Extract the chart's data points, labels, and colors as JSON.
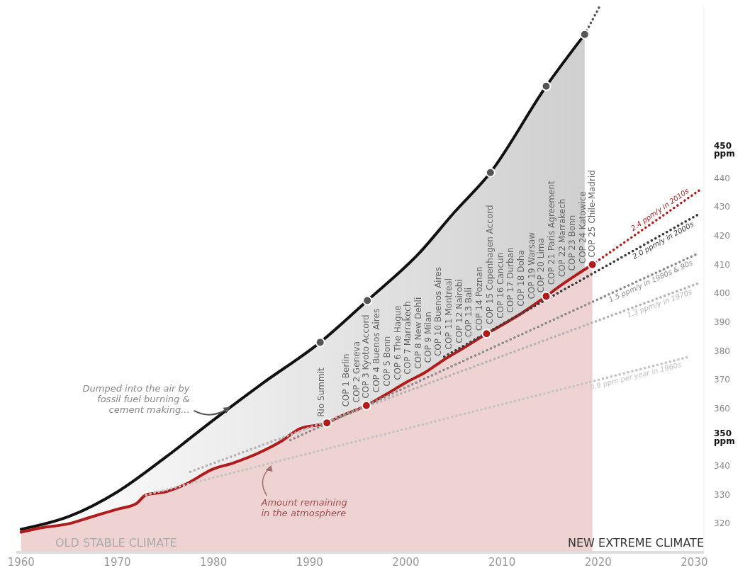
{
  "chart_data": {
    "type": "area",
    "marker": "none",
    "line_style": "solid",
    "xlim": [
      1959.5,
      2031
    ],
    "xticks": [
      1960,
      1970,
      1980,
      1990,
      2000,
      2010,
      2020,
      2030
    ],
    "ylim": [
      310,
      500
    ],
    "yticks": [
      320,
      330,
      340,
      {
        "value": 350,
        "label": "350 ppm"
      },
      360,
      370,
      380,
      390,
      400,
      410,
      420,
      430,
      440,
      {
        "value": 450,
        "label": "450 ppm"
      }
    ],
    "series": [
      {
        "color": "#111111",
        "x": [
          1960,
          1965,
          1970,
          1975,
          1980,
          1985,
          1991.1,
          1996,
          2001.4,
          2005,
          2008.8,
          2014.6,
          2018.6
        ],
        "values": [
          318,
          322.5,
          331,
          343,
          356,
          368.5,
          383,
          397.5,
          414,
          428,
          442,
          472,
          490
        ]
      },
      {
        "color": "#b01c1c",
        "x": [
          1960,
          1962,
          1965,
          1967,
          1970,
          1972,
          1973,
          1975,
          1977,
          1980,
          1982,
          1985,
          1987,
          1989,
          1991.8,
          1993,
          1995.9,
          1998,
          2000,
          2002,
          2004,
          2006,
          2008.4,
          2010,
          2012,
          2014.6,
          2016,
          2018,
          2019.4
        ],
        "values": [
          317,
          318.5,
          320,
          322,
          325,
          327,
          330,
          331,
          333.5,
          339,
          341,
          345,
          348.5,
          353,
          355,
          357,
          361,
          365,
          369,
          372.5,
          377,
          381,
          386,
          389,
          393,
          399,
          402.5,
          407,
          410
        ]
      },
      {
        "type": "line",
        "line_style": "dotted",
        "color": "#555555",
        "x": [
          2018.6,
          2020.2
        ],
        "values": [
          490,
          500
        ]
      },
      {
        "type": "line",
        "line_style": "dotted",
        "name": "0.9 ppm per year in 1960s",
        "color": "#c4c4c4",
        "x": [
          1973,
          2029.5
        ],
        "values": [
          330,
          378
        ]
      },
      {
        "type": "line",
        "line_style": "dotted",
        "name": "1.3 ppm/y in 1970s",
        "color": "#b4b4b4",
        "x": [
          1977.6,
          2030.5
        ],
        "values": [
          338,
          403.6
        ]
      },
      {
        "type": "line",
        "line_style": "dotted",
        "name": "1.5 ppm/y in 1980s & 90s",
        "color": "#8c8c8c",
        "x": [
          1988,
          2030.5
        ],
        "values": [
          349,
          414
        ]
      },
      {
        "type": "line",
        "line_style": "dotted",
        "name": "2.0 ppm/y in 2000s",
        "color": "#3a3a3a",
        "x": [
          2004,
          2030.5
        ],
        "values": [
          378,
          427.6
        ]
      },
      {
        "type": "line",
        "line_style": "dotted",
        "name": "2.4 ppm/y in 2010s",
        "color": "#b01c1c",
        "x": [
          2019.4,
          2030.6
        ],
        "values": [
          410,
          436
        ]
      },
      {
        "type": "scatter",
        "marker": "circle",
        "color": "#555555",
        "x": [
          1991.1,
          1996,
          2008.8,
          2014.6,
          2018.6
        ],
        "values": [
          383,
          397.5,
          442,
          472,
          490
        ]
      },
      {
        "type": "scatter",
        "marker": "circle",
        "color": "#b01c1c",
        "x": [
          1991.8,
          1995.9,
          2008.4,
          2014.6,
          2019.4
        ],
        "values": [
          355,
          361,
          386,
          399,
          410
        ]
      }
    ],
    "annotations": [
      {
        "text": "Dumped into the air by fossil fuel burning & cement making...",
        "x": 1981.8,
        "y": 360.5
      },
      {
        "text": "Amount remaining in the atmosphere",
        "x": 1986,
        "y": 341
      },
      "OLD STABLE CLIMATE",
      "NEW EXTREME CLIMATE",
      {
        "text": "Rio Summit",
        "x": 1991.2,
        "y": 354.6
      },
      {
        "text": "COP 1 Berlin",
        "x": 1993.8,
        "y": 358.1
      },
      {
        "text": "COP 2 Geneva",
        "x": 1994.9,
        "y": 359.6
      },
      {
        "text": "COP 3 Kyoto Accord",
        "x": 1995.9,
        "y": 361
      },
      {
        "text": "COP 4 Buenos Aires",
        "x": 1997,
        "y": 363.1
      },
      {
        "text": "COP 5 Bonn",
        "x": 1998.1,
        "y": 365.2
      },
      {
        "text": "COP 6 The Hague",
        "x": 1999.2,
        "y": 367.4
      },
      {
        "text": "COP 7 Marrakech",
        "x": 2000.2,
        "y": 369.4
      },
      {
        "text": "COP 8 New Dehli",
        "x": 2001.3,
        "y": 371.3
      },
      {
        "text": "COP 9 Milan",
        "x": 2002.4,
        "y": 373.4
      },
      {
        "text": "COP 10 Buenos Aires",
        "x": 2003.4,
        "y": 375.7
      },
      {
        "text": "COP 11 Montreal",
        "x": 2004.5,
        "y": 378
      },
      {
        "text": "COP 12 Nairobi",
        "x": 2005.6,
        "y": 380.2
      },
      {
        "text": "COP 13 Bali",
        "x": 2006.6,
        "y": 382.3
      },
      {
        "text": "COP 14 Poznan",
        "x": 2007.7,
        "y": 384.5
      },
      {
        "text": "COP 15 Copenhagen Accord",
        "x": 2008.8,
        "y": 386.8
      },
      {
        "text": "COP 16 Cancun",
        "x": 2009.9,
        "y": 388.8
      },
      {
        "text": "COP 17 Durban",
        "x": 2010.9,
        "y": 390.8
      },
      {
        "text": "COP 18 Doha",
        "x": 2012,
        "y": 393
      },
      {
        "text": "COP 19 Warsaw",
        "x": 2013.1,
        "y": 395.5
      },
      {
        "text": "COP 20 Lima",
        "x": 2014.1,
        "y": 397.8
      },
      {
        "text": "COP 21 Paris Agreement",
        "x": 2015.2,
        "y": 400.5
      },
      {
        "text": "COP 22 Marrakech",
        "x": 2016.3,
        "y": 403.2
      },
      {
        "text": "COP 23 Bonn",
        "x": 2017.3,
        "y": 405.4
      },
      {
        "text": "COP 24 Katowice",
        "x": 2018.4,
        "y": 407.9
      },
      {
        "text": "COP 25 Chile-Madrid",
        "x": 2019.4,
        "y": 410
      }
    ]
  }
}
